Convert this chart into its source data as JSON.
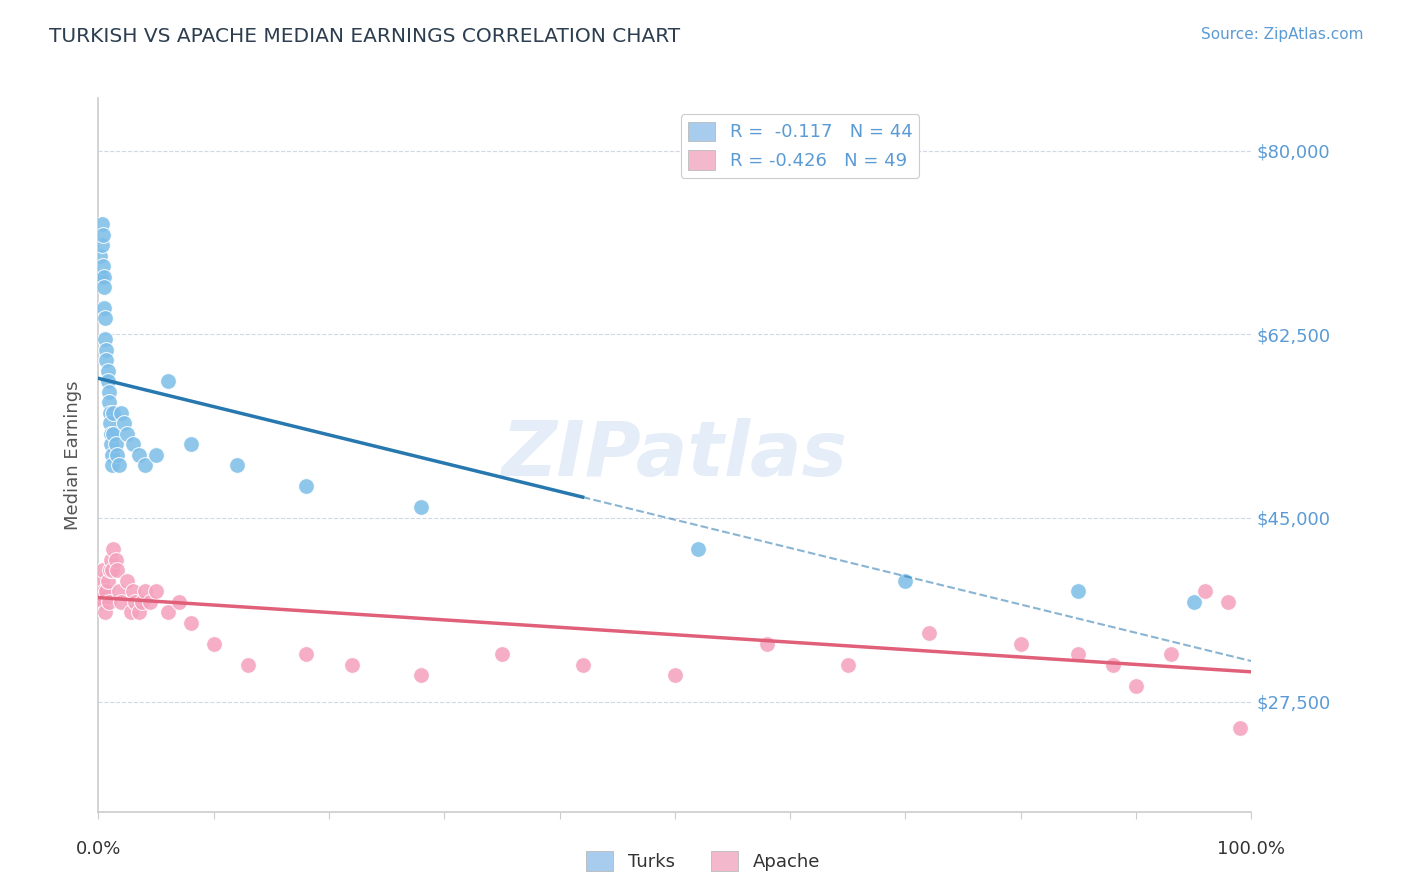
{
  "title": "TURKISH VS APACHE MEDIAN EARNINGS CORRELATION CHART",
  "source_text": "Source: ZipAtlas.com",
  "ylabel": "Median Earnings",
  "yticks": [
    27500,
    45000,
    62500,
    80000
  ],
  "ytick_labels": [
    "$27,500",
    "$45,000",
    "$62,500",
    "$80,000"
  ],
  "ylim": [
    17000,
    85000
  ],
  "xlim": [
    0.0,
    1.0
  ],
  "watermark": "ZIPatlas",
  "turks_color": "#7bbde8",
  "turks_line_color": "#2878b0",
  "apache_color": "#f4a0bc",
  "apache_line_color": "#e0607a",
  "turks_R": -0.117,
  "turks_N": 44,
  "apache_R": -0.426,
  "apache_N": 49,
  "grid_color": "#d0d8e8",
  "spine_color": "#cccccc",
  "title_color": "#2c3e50",
  "tick_label_color": "#5b9bd5",
  "legend_box_color_turks": "#a8ccee",
  "legend_box_color_apache": "#f4b8cc",
  "turks_x": [
    0.001,
    0.002,
    0.003,
    0.003,
    0.004,
    0.004,
    0.005,
    0.005,
    0.005,
    0.006,
    0.006,
    0.007,
    0.007,
    0.008,
    0.008,
    0.009,
    0.009,
    0.01,
    0.01,
    0.011,
    0.011,
    0.012,
    0.012,
    0.013,
    0.013,
    0.015,
    0.016,
    0.018,
    0.02,
    0.022,
    0.025,
    0.03,
    0.035,
    0.04,
    0.05,
    0.06,
    0.08,
    0.12,
    0.18,
    0.28,
    0.52,
    0.7,
    0.85,
    0.95
  ],
  "turks_y": [
    70000,
    68000,
    73000,
    71000,
    72000,
    69000,
    68000,
    67000,
    65000,
    64000,
    62000,
    61000,
    60000,
    59000,
    58000,
    57000,
    56000,
    55000,
    54000,
    53000,
    52000,
    51000,
    50000,
    55000,
    53000,
    52000,
    51000,
    50000,
    55000,
    54000,
    53000,
    52000,
    51000,
    50000,
    51000,
    58000,
    52000,
    50000,
    48000,
    46000,
    42000,
    39000,
    38000,
    37000
  ],
  "apache_x": [
    0.001,
    0.002,
    0.003,
    0.004,
    0.005,
    0.005,
    0.006,
    0.007,
    0.008,
    0.009,
    0.01,
    0.011,
    0.012,
    0.013,
    0.015,
    0.016,
    0.018,
    0.02,
    0.025,
    0.028,
    0.03,
    0.032,
    0.035,
    0.038,
    0.04,
    0.045,
    0.05,
    0.06,
    0.07,
    0.08,
    0.1,
    0.13,
    0.18,
    0.22,
    0.28,
    0.35,
    0.42,
    0.5,
    0.58,
    0.65,
    0.72,
    0.8,
    0.85,
    0.88,
    0.9,
    0.93,
    0.96,
    0.98,
    0.99
  ],
  "apache_y": [
    38000,
    37000,
    39000,
    40000,
    38000,
    37000,
    36000,
    38000,
    39000,
    37000,
    40000,
    41000,
    40000,
    42000,
    41000,
    40000,
    38000,
    37000,
    39000,
    36000,
    38000,
    37000,
    36000,
    37000,
    38000,
    37000,
    38000,
    36000,
    37000,
    35000,
    33000,
    31000,
    32000,
    31000,
    30000,
    32000,
    31000,
    30000,
    33000,
    31000,
    34000,
    33000,
    32000,
    31000,
    29000,
    32000,
    38000,
    37000,
    25000
  ]
}
